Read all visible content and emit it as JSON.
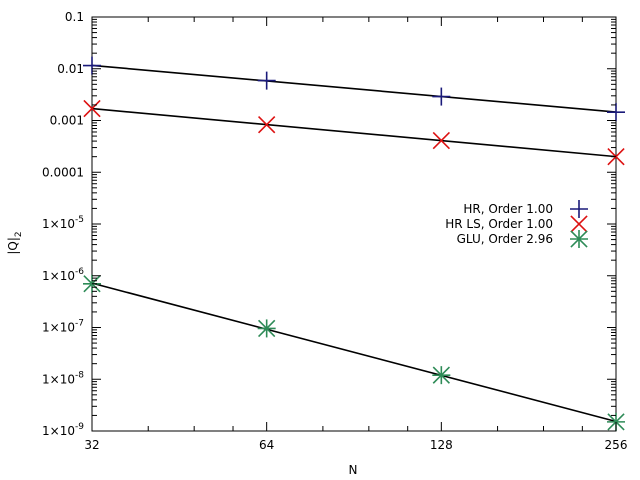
{
  "chart_data": {
    "type": "scatter",
    "xlabel": "N",
    "ylabel": "|Q|",
    "ylabel_sub": "2",
    "x_scale": "log2",
    "y_scale": "log10",
    "xlim": [
      32,
      256
    ],
    "ylim": [
      1e-09,
      0.1
    ],
    "x_ticks": [
      {
        "value": 32,
        "label": "32"
      },
      {
        "value": 64,
        "label": "64"
      },
      {
        "value": 128,
        "label": "128"
      },
      {
        "value": 256,
        "label": "256"
      }
    ],
    "y_ticks": [
      {
        "value": 1e-09,
        "base": "1×10",
        "exp": "-9"
      },
      {
        "value": 1e-08,
        "base": "1×10",
        "exp": "-8"
      },
      {
        "value": 1e-07,
        "base": "1×10",
        "exp": "-7"
      },
      {
        "value": 1e-06,
        "base": "1×10",
        "exp": "-6"
      },
      {
        "value": 1e-05,
        "base": "1×10",
        "exp": "-5"
      },
      {
        "value": 0.0001,
        "base": "0.0001",
        "exp": ""
      },
      {
        "value": 0.001,
        "base": "0.001",
        "exp": ""
      },
      {
        "value": 0.01,
        "base": "0.01",
        "exp": ""
      },
      {
        "value": 0.1,
        "base": "0.1",
        "exp": ""
      }
    ],
    "legend_position": "right",
    "series": [
      {
        "name": "HR, Order 1.00",
        "marker": "plus",
        "color": "#1a1a7a",
        "x": [
          32,
          64,
          128,
          256
        ],
        "y": [
          0.0115,
          0.0059,
          0.0029,
          0.00145
        ]
      },
      {
        "name": "HR LS, Order 1.00",
        "marker": "cross",
        "color": "#dd1111",
        "x": [
          32,
          64,
          128,
          256
        ],
        "y": [
          0.0017,
          0.00083,
          0.00041,
          0.0002
        ]
      },
      {
        "name": "GLU, Order 2.96",
        "marker": "star",
        "color": "#2e8b57",
        "x": [
          32,
          64,
          128,
          256
        ],
        "y": [
          7e-07,
          9.6e-08,
          1.2e-08,
          1.5e-09
        ]
      }
    ]
  }
}
